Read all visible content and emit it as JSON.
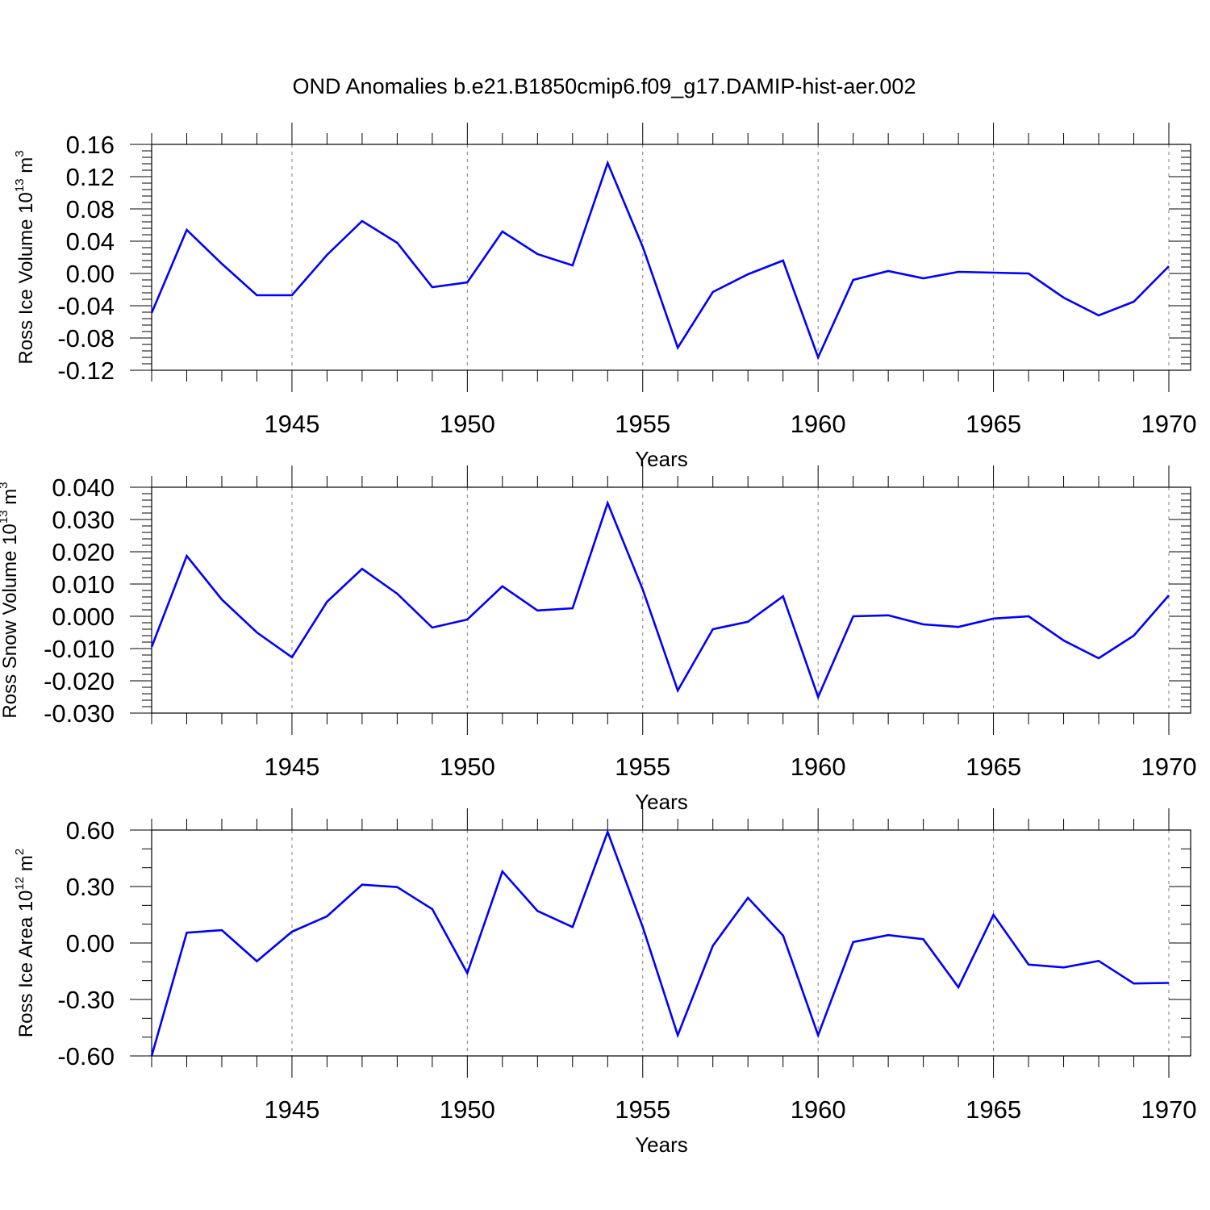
{
  "title": "OND Anomalies b.e21.B1850cmip6.f09_g17.DAMIP-hist-aer.002",
  "colors": {
    "line": "#0000ff",
    "axis": "#000000",
    "grid": "#808080"
  },
  "chart_data": [
    {
      "type": "line",
      "ylabel": {
        "text": "Ross Ice Volume 10",
        "exponent": "13",
        "unit": " m",
        "unit_exponent": "3"
      },
      "xlabel": "Years",
      "xlim": [
        1941,
        1970
      ],
      "ylim": [
        -0.12,
        0.16
      ],
      "yticks": [
        -0.12,
        -0.08,
        -0.04,
        0.0,
        0.04,
        0.08,
        0.12,
        0.16
      ],
      "ytick_labels": [
        "-0.12",
        "-0.08",
        "-0.04",
        "0.00",
        "0.04",
        "0.08",
        "0.12",
        "0.16"
      ],
      "yminor_step": 0.008,
      "xticks": [
        1945,
        1950,
        1955,
        1960,
        1965,
        1970
      ],
      "xtick_labels": [
        "1945",
        "1950",
        "1955",
        "1960",
        "1965",
        "1970"
      ],
      "x": [
        1941,
        1942,
        1943,
        1944,
        1945,
        1946,
        1947,
        1948,
        1949,
        1950,
        1951,
        1952,
        1953,
        1954,
        1955,
        1956,
        1957,
        1958,
        1959,
        1960,
        1961,
        1962,
        1963,
        1964,
        1965,
        1966,
        1967,
        1968,
        1969,
        1970
      ],
      "series": [
        {
          "name": "Ross Ice Volume",
          "values": [
            -0.049,
            0.054,
            0.012,
            -0.027,
            -0.027,
            0.023,
            0.065,
            0.038,
            -0.017,
            -0.011,
            0.052,
            0.024,
            0.01,
            0.137,
            0.033,
            -0.092,
            -0.023,
            -0.001,
            0.016,
            -0.104,
            -0.008,
            0.003,
            -0.006,
            0.002,
            0.001,
            0.0,
            -0.03,
            -0.052,
            -0.035,
            0.009
          ]
        }
      ]
    },
    {
      "type": "line",
      "ylabel": {
        "text": "Ross Snow Volume 10",
        "exponent": "13",
        "unit": " m",
        "unit_exponent": "3"
      },
      "xlabel": "Years",
      "xlim": [
        1941,
        1970
      ],
      "ylim": [
        -0.03,
        0.04
      ],
      "yticks": [
        -0.03,
        -0.02,
        -0.01,
        0.0,
        0.01,
        0.02,
        0.03,
        0.04
      ],
      "ytick_labels": [
        "-0.030",
        "-0.020",
        "-0.010",
        "0.000",
        "0.010",
        "0.020",
        "0.030",
        "0.040"
      ],
      "yminor_step": 0.002,
      "xticks": [
        1945,
        1950,
        1955,
        1960,
        1965,
        1970
      ],
      "xtick_labels": [
        "1945",
        "1950",
        "1955",
        "1960",
        "1965",
        "1970"
      ],
      "x": [
        1941,
        1942,
        1943,
        1944,
        1945,
        1946,
        1947,
        1948,
        1949,
        1950,
        1951,
        1952,
        1953,
        1954,
        1955,
        1956,
        1957,
        1958,
        1959,
        1960,
        1961,
        1962,
        1963,
        1964,
        1965,
        1966,
        1967,
        1968,
        1969,
        1970
      ],
      "series": [
        {
          "name": "Ross Snow Volume",
          "values": [
            -0.0095,
            0.0187,
            0.0052,
            -0.005,
            -0.0127,
            0.0045,
            0.0147,
            0.007,
            -0.0035,
            -0.001,
            0.0093,
            0.0018,
            0.0025,
            0.0351,
            0.0083,
            -0.023,
            -0.004,
            -0.0017,
            0.0062,
            -0.025,
            0.0,
            0.0003,
            -0.0025,
            -0.0033,
            -0.0007,
            0.0,
            -0.0075,
            -0.013,
            -0.006,
            0.0065
          ]
        }
      ]
    },
    {
      "type": "line",
      "ylabel": {
        "text": "Ross Ice Area 10",
        "exponent": "12",
        "unit": " m",
        "unit_exponent": "2"
      },
      "xlabel": "Years",
      "xlim": [
        1941,
        1970
      ],
      "ylim": [
        -0.6,
        0.6
      ],
      "yticks": [
        -0.6,
        -0.3,
        0.0,
        0.3,
        0.6
      ],
      "ytick_labels": [
        "-0.60",
        "-0.30",
        "0.00",
        "0.30",
        "0.60"
      ],
      "yminor_step": 0.1,
      "xticks": [
        1945,
        1950,
        1955,
        1960,
        1965,
        1970
      ],
      "xtick_labels": [
        "1945",
        "1950",
        "1955",
        "1960",
        "1965",
        "1970"
      ],
      "x": [
        1941,
        1942,
        1943,
        1944,
        1945,
        1946,
        1947,
        1948,
        1949,
        1950,
        1951,
        1952,
        1953,
        1954,
        1955,
        1956,
        1957,
        1958,
        1959,
        1960,
        1961,
        1962,
        1963,
        1964,
        1965,
        1966,
        1967,
        1968,
        1969,
        1970
      ],
      "series": [
        {
          "name": "Ross Ice Area",
          "values": [
            -0.6,
            0.055,
            0.068,
            -0.097,
            0.06,
            0.142,
            0.31,
            0.297,
            0.18,
            -0.16,
            0.38,
            0.17,
            0.085,
            0.59,
            0.085,
            -0.49,
            -0.015,
            0.24,
            0.04,
            -0.49,
            0.005,
            0.042,
            0.02,
            -0.235,
            0.15,
            -0.115,
            -0.13,
            -0.095,
            -0.215,
            -0.212
          ]
        }
      ]
    }
  ]
}
